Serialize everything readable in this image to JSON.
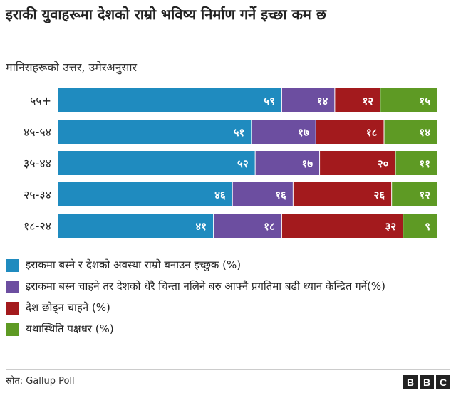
{
  "chart_data": {
    "type": "bar",
    "orientation": "horizontal",
    "stacked": true,
    "title": "इराकी युवाहरूमा देशको राम्रो भविष्य निर्माण गर्ने इच्छा कम छ",
    "subtitle": "मानिसहरूको उत्तर, उमेरअनुसार",
    "categories": [
      "५५+",
      "४५-५४",
      "३५-४४",
      "२५-३४",
      "१८-२४"
    ],
    "series": [
      {
        "name": "इराकमा बस्ने र देशको अवस्था राम्रो बनाउन इच्छुक (%)",
        "color": "#1f8bbf",
        "values": [
          59,
          51,
          52,
          46,
          41
        ],
        "labels": [
          "५९",
          "५१",
          "५२",
          "४६",
          "४१"
        ]
      },
      {
        "name": "इराकमा बस्न चाहने तर देशको धेरै चिन्ता नलिने बरु आफ्नै प्रगतिमा बढी ध्यान केन्द्रित गर्ने(%)",
        "color": "#6c4ea0",
        "values": [
          14,
          17,
          17,
          16,
          18
        ],
        "labels": [
          "१४",
          "१७",
          "१७",
          "१६",
          "१८"
        ]
      },
      {
        "name": "देश छोड्न चाहने (%)",
        "color": "#a31a1d",
        "values": [
          12,
          18,
          20,
          26,
          32
        ],
        "labels": [
          "१२",
          "१८",
          "२०",
          "२६",
          "३२"
        ]
      },
      {
        "name": "यथास्थिति पक्षधर (%)",
        "color": "#5e9a24",
        "values": [
          15,
          14,
          11,
          12,
          9
        ],
        "labels": [
          "१५",
          "१४",
          "११",
          "१२",
          "९"
        ]
      }
    ],
    "xlim": [
      0,
      100
    ],
    "grid": false,
    "legend_position": "bottom"
  },
  "footer": {
    "source": "स्रोत:  Gallup Poll",
    "logo_letters": [
      "B",
      "B",
      "C"
    ]
  }
}
